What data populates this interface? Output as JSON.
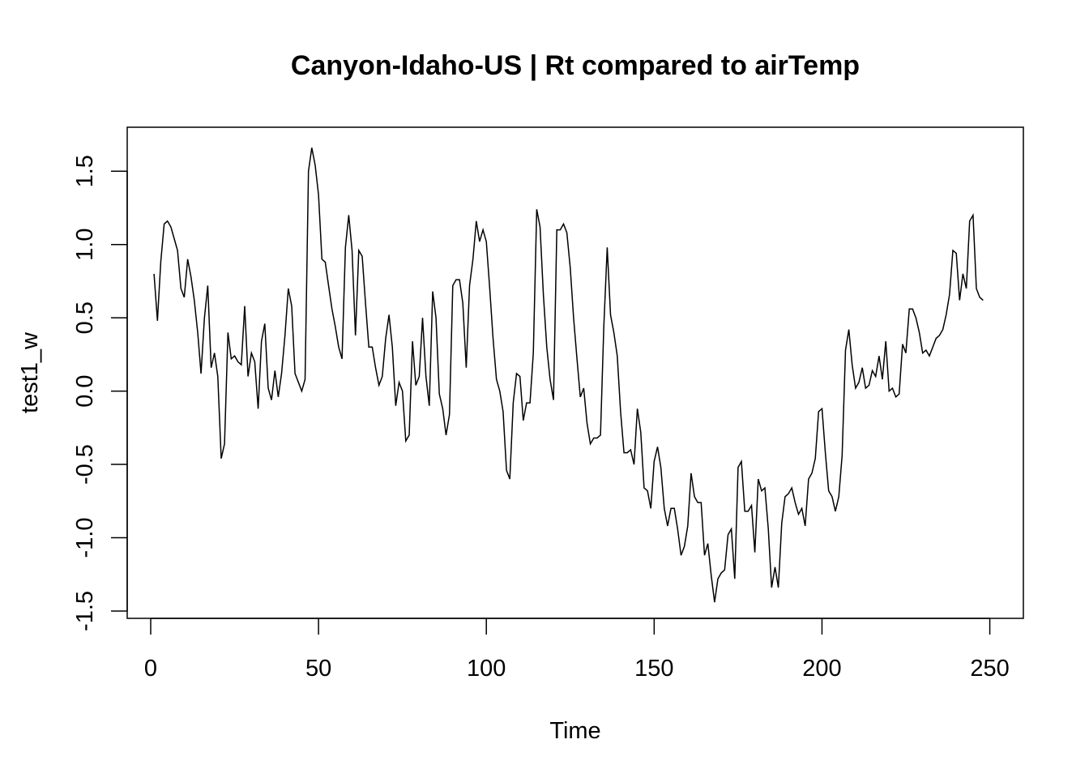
{
  "chart_data": {
    "type": "line",
    "title": "Canyon-Idaho-US | Rt compared to airTemp",
    "xlabel": "Time",
    "ylabel": "test1_w",
    "xlim": [
      -7,
      260
    ],
    "ylim": [
      -1.55,
      1.8
    ],
    "x_ticks": [
      0,
      50,
      100,
      150,
      200,
      250
    ],
    "x_tick_labels": [
      "0",
      "50",
      "100",
      "150",
      "200",
      "250"
    ],
    "y_ticks": [
      -1.5,
      -1.0,
      -0.5,
      0.0,
      0.5,
      1.0,
      1.5
    ],
    "y_tick_labels": [
      "-1.5",
      "-1.0",
      "-0.5",
      "0.0",
      "0.5",
      "1.0",
      "1.5"
    ],
    "grid": false,
    "legend": "none",
    "line_color": "#000000",
    "series": [
      {
        "x": [
          1,
          2,
          3,
          4,
          5,
          6,
          7,
          8,
          9,
          10,
          11,
          12,
          13,
          14,
          15,
          16,
          17,
          18,
          19,
          20,
          21,
          22,
          23,
          24,
          25,
          26,
          27,
          28,
          29,
          30,
          31,
          32,
          33,
          34,
          35,
          36,
          37,
          38,
          39,
          40,
          41,
          42,
          43,
          44,
          45,
          46,
          47,
          48,
          49,
          50,
          51,
          52,
          53,
          54,
          55,
          56,
          57,
          58,
          59,
          60,
          61,
          62,
          63,
          64,
          65,
          66,
          67,
          68,
          69,
          70,
          71,
          72,
          73,
          74,
          75,
          76,
          77,
          78,
          79,
          80,
          81,
          82,
          83,
          84,
          85,
          86,
          87,
          88,
          89,
          90,
          91,
          92,
          93,
          94,
          95,
          96,
          97,
          98,
          99,
          100,
          101,
          102,
          103,
          104,
          105,
          106,
          107,
          108,
          109,
          110,
          111,
          112,
          113,
          114,
          115,
          116,
          117,
          118,
          119,
          120,
          121,
          122,
          123,
          124,
          125,
          126,
          127,
          128,
          129,
          130,
          131,
          132,
          133,
          134,
          135,
          136,
          137,
          138,
          139,
          140,
          141,
          142,
          143,
          144,
          145,
          146,
          147,
          148,
          149,
          150,
          151,
          152,
          153,
          154,
          155,
          156,
          157,
          158,
          159,
          160,
          161,
          162,
          163,
          164,
          165,
          166,
          167,
          168,
          169,
          170,
          171,
          172,
          173,
          174,
          175,
          176,
          177,
          178,
          179,
          180,
          181,
          182,
          183,
          184,
          185,
          186,
          187,
          188,
          189,
          190,
          191,
          192,
          193,
          194,
          195,
          196,
          197,
          198,
          199,
          200,
          201,
          202,
          203,
          204,
          205,
          206,
          207,
          208,
          209,
          210,
          211,
          212,
          213,
          214,
          215,
          216,
          217,
          218,
          219,
          220,
          221,
          222,
          223,
          224,
          225,
          226,
          227,
          228,
          229,
          230,
          231,
          232,
          233,
          234,
          235,
          236,
          237,
          238,
          239,
          240,
          241,
          242,
          243,
          244,
          245,
          246,
          247,
          248
        ],
        "values": [
          0.8,
          0.48,
          0.88,
          1.14,
          1.16,
          1.12,
          1.04,
          0.96,
          0.7,
          0.64,
          0.9,
          0.78,
          0.62,
          0.4,
          0.12,
          0.5,
          0.72,
          0.16,
          0.26,
          0.1,
          -0.46,
          -0.36,
          0.4,
          0.22,
          0.24,
          0.2,
          0.18,
          0.58,
          0.1,
          0.26,
          0.2,
          -0.12,
          0.34,
          0.46,
          0.02,
          -0.06,
          0.14,
          -0.04,
          0.12,
          0.38,
          0.7,
          0.58,
          0.12,
          0.06,
          0.0,
          0.08,
          1.5,
          1.66,
          1.54,
          1.34,
          0.9,
          0.88,
          0.72,
          0.56,
          0.44,
          0.3,
          0.22,
          0.98,
          1.2,
          0.96,
          0.38,
          0.96,
          0.92,
          0.6,
          0.3,
          0.3,
          0.16,
          0.04,
          0.1,
          0.36,
          0.52,
          0.3,
          -0.1,
          0.06,
          0.0,
          -0.34,
          -0.3,
          0.34,
          0.04,
          0.1,
          0.5,
          0.1,
          -0.1,
          0.68,
          0.5,
          -0.02,
          -0.12,
          -0.3,
          -0.16,
          0.72,
          0.76,
          0.76,
          0.6,
          0.16,
          0.72,
          0.9,
          1.16,
          1.02,
          1.1,
          1.02,
          0.7,
          0.36,
          0.08,
          0.0,
          -0.14,
          -0.54,
          -0.6,
          -0.08,
          0.12,
          0.1,
          -0.2,
          -0.08,
          -0.08,
          0.26,
          1.24,
          1.12,
          0.66,
          0.3,
          0.08,
          -0.06,
          1.1,
          1.1,
          1.14,
          1.08,
          0.84,
          0.5,
          0.22,
          -0.04,
          0.02,
          -0.22,
          -0.36,
          -0.32,
          -0.32,
          -0.3,
          0.44,
          0.98,
          0.52,
          0.4,
          0.24,
          -0.14,
          -0.42,
          -0.42,
          -0.4,
          -0.5,
          -0.12,
          -0.28,
          -0.66,
          -0.68,
          -0.8,
          -0.48,
          -0.38,
          -0.52,
          -0.8,
          -0.92,
          -0.8,
          -0.8,
          -0.94,
          -1.12,
          -1.06,
          -0.92,
          -0.56,
          -0.72,
          -0.76,
          -0.76,
          -1.12,
          -1.04,
          -1.26,
          -1.44,
          -1.28,
          -1.24,
          -1.22,
          -0.98,
          -0.94,
          -1.28,
          -0.52,
          -0.48,
          -0.82,
          -0.82,
          -0.78,
          -1.1,
          -0.6,
          -0.68,
          -0.66,
          -0.94,
          -1.34,
          -1.2,
          -1.34,
          -0.9,
          -0.72,
          -0.7,
          -0.66,
          -0.76,
          -0.84,
          -0.8,
          -0.92,
          -0.6,
          -0.56,
          -0.46,
          -0.14,
          -0.12,
          -0.42,
          -0.68,
          -0.72,
          -0.82,
          -0.72,
          -0.44,
          0.28,
          0.42,
          0.18,
          0.02,
          0.06,
          0.16,
          0.02,
          0.04,
          0.14,
          0.1,
          0.24,
          0.08,
          0.34,
          0.0,
          0.02,
          -0.04,
          -0.02,
          0.32,
          0.26,
          0.56,
          0.56,
          0.5,
          0.4,
          0.26,
          0.28,
          0.24,
          0.3,
          0.36,
          0.38,
          0.42,
          0.52,
          0.66,
          0.96,
          0.94,
          0.62,
          0.8,
          0.7,
          1.16,
          1.2,
          0.7,
          0.64,
          0.62
        ]
      }
    ]
  }
}
